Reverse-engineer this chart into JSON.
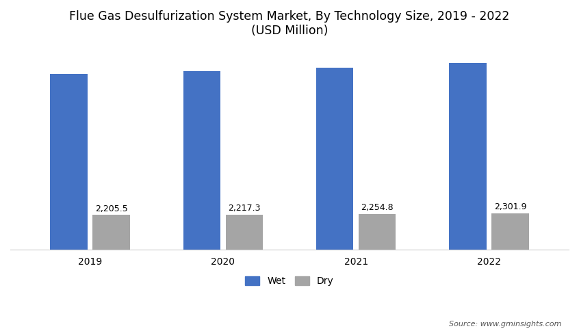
{
  "title_line1": "Flue Gas Desulfurization System Market, By Technology Size, 2019 - 2022",
  "title_line2": "(USD Million)",
  "years": [
    "2019",
    "2020",
    "2021",
    "2022"
  ],
  "wet_values": [
    11200,
    11350,
    11600,
    11900
  ],
  "dry_values": [
    2205.5,
    2217.3,
    2254.8,
    2301.9
  ],
  "dry_labels": [
    "2,205.5",
    "2,217.3",
    "2,254.8",
    "2,301.9"
  ],
  "wet_color": "#4472C4",
  "dry_color": "#A5A5A5",
  "background_color": "#FFFFFF",
  "legend_wet": "Wet",
  "legend_dry": "Dry",
  "source_text": "Source: www.gminsights.com",
  "bar_width": 0.28,
  "ylim": [
    0,
    13000
  ],
  "title_fontsize": 12.5,
  "label_fontsize": 9,
  "tick_fontsize": 10,
  "legend_fontsize": 10,
  "source_fontsize": 8
}
